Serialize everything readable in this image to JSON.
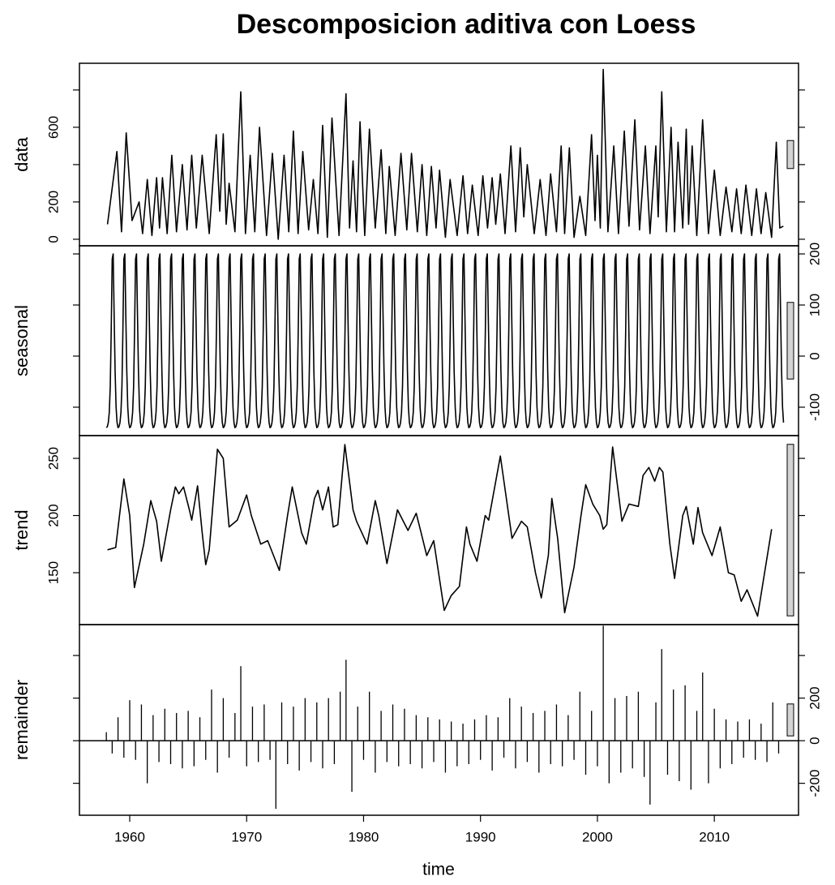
{
  "chart_data": {
    "type": "stl",
    "title": "Descomposicion aditiva con Loess",
    "xlabel": "time",
    "xlim": [
      1955.7,
      2017.2
    ],
    "xticks": [
      1960,
      1970,
      1980,
      1990,
      2000,
      2010
    ],
    "panels": [
      {
        "ylabel": "data",
        "type": "line",
        "axis_side": "left",
        "color": "#000000",
        "ylim": [
          -35,
          943
        ],
        "yticks": [
          0,
          200,
          600
        ],
        "yticks_unlabeled": [
          400,
          800
        ],
        "x": [
          1958.1,
          1958.9,
          1959.3,
          1959.7,
          1960.2,
          1960.8,
          1961.1,
          1961.5,
          1961.9,
          1962.3,
          1962.55,
          1962.8,
          1963.2,
          1963.6,
          1964.0,
          1964.5,
          1964.9,
          1965.3,
          1965.7,
          1966.2,
          1966.8,
          1967.4,
          1967.7,
          1968.0,
          1968.25,
          1968.5,
          1969.0,
          1969.5,
          1969.9,
          1970.3,
          1970.7,
          1971.1,
          1971.7,
          1972.2,
          1972.7,
          1973.2,
          1973.6,
          1974.0,
          1974.4,
          1974.8,
          1975.3,
          1975.7,
          1976.1,
          1976.5,
          1976.9,
          1977.3,
          1977.9,
          1978.5,
          1978.8,
          1979.1,
          1979.4,
          1979.7,
          1980.1,
          1980.5,
          1981.0,
          1981.5,
          1981.9,
          1982.2,
          1982.7,
          1983.2,
          1983.7,
          1984.1,
          1984.6,
          1985.0,
          1985.4,
          1985.8,
          1986.2,
          1986.5,
          1987.0,
          1987.4,
          1988.0,
          1988.5,
          1988.9,
          1989.3,
          1989.8,
          1990.2,
          1990.6,
          1991.0,
          1991.3,
          1991.7,
          1992.1,
          1992.6,
          1993.0,
          1993.4,
          1993.7,
          1994.0,
          1994.6,
          1995.1,
          1995.6,
          1996.0,
          1996.5,
          1996.9,
          1997.2,
          1997.6,
          1998.0,
          1998.5,
          1999.0,
          1999.5,
          1999.8,
          2000.0,
          2000.25,
          2000.5,
          2000.9,
          2001.4,
          2001.8,
          2002.3,
          2002.7,
          2003.2,
          2003.6,
          2004.1,
          2004.5,
          2005.0,
          2005.2,
          2005.5,
          2005.9,
          2006.3,
          2006.6,
          2006.9,
          2007.3,
          2007.6,
          2007.8,
          2008.1,
          2008.5,
          2009.0,
          2009.5,
          2010.0,
          2010.5,
          2011.0,
          2011.5,
          2011.9,
          2012.3,
          2012.7,
          2013.2,
          2013.6,
          2014.0,
          2014.4,
          2014.9,
          2015.3,
          2015.6,
          2015.9
        ],
        "values": [
          80,
          470,
          40,
          570,
          100,
          200,
          30,
          320,
          20,
          330,
          60,
          330,
          30,
          450,
          40,
          400,
          50,
          450,
          60,
          450,
          30,
          560,
          150,
          565,
          80,
          300,
          40,
          790,
          30,
          450,
          40,
          600,
          20,
          460,
          0,
          450,
          40,
          580,
          30,
          470,
          50,
          320,
          30,
          610,
          10,
          650,
          20,
          780,
          60,
          420,
          40,
          630,
          20,
          590,
          60,
          480,
          30,
          390,
          20,
          460,
          50,
          460,
          40,
          400,
          20,
          390,
          60,
          370,
          10,
          320,
          20,
          340,
          30,
          290,
          20,
          340,
          60,
          330,
          80,
          350,
          30,
          500,
          40,
          490,
          120,
          400,
          30,
          320,
          20,
          350,
          40,
          500,
          30,
          490,
          10,
          230,
          20,
          560,
          100,
          450,
          60,
          910,
          40,
          500,
          30,
          580,
          70,
          640,
          50,
          500,
          30,
          500,
          120,
          790,
          40,
          600,
          40,
          520,
          60,
          590,
          80,
          500,
          20,
          640,
          30,
          370,
          20,
          280,
          40,
          270,
          30,
          290,
          20,
          270,
          30,
          250,
          10,
          520,
          60,
          70
        ]
      },
      {
        "ylabel": "seasonal",
        "type": "cycle",
        "axis_side": "right",
        "color": "#000000",
        "ylim": [
          -155.6,
          215.9
        ],
        "yticks": [
          -100,
          0,
          100,
          200
        ],
        "start": 1958,
        "end": 2016,
        "frequency": 12,
        "values": [
          -140,
          -138,
          -130,
          -110,
          -60,
          50,
          190,
          200,
          80,
          -30,
          -100,
          -130
        ]
      },
      {
        "ylabel": "trend",
        "type": "line",
        "axis_side": "left",
        "color": "#000000",
        "scale_bar": true,
        "ylim": [
          104.6,
          269.9
        ],
        "yticks": [
          150,
          200,
          250
        ],
        "x": [
          1958.1,
          1958.8,
          1959.5,
          1960,
          1960.4,
          1961.2,
          1961.8,
          1962.3,
          1962.7,
          1963.5,
          1963.9,
          1964.2,
          1964.6,
          1965.1,
          1965.3,
          1965.8,
          1966.2,
          1966.5,
          1966.8,
          1967.5,
          1968,
          1968.5,
          1969.2,
          1970,
          1970.4,
          1971.2,
          1971.8,
          1972.8,
          1973.5,
          1973.9,
          1974.7,
          1975.1,
          1975.8,
          1976.1,
          1976.5,
          1977,
          1977.4,
          1977.8,
          1978.4,
          1979.1,
          1979.4,
          1980.3,
          1981,
          1981.3,
          1982,
          1982.9,
          1983.4,
          1983.8,
          1984.5,
          1984.9,
          1985.4,
          1986,
          1986.9,
          1987.5,
          1988.2,
          1988.8,
          1989.1,
          1989.7,
          1990.4,
          1990.7,
          1991.7,
          1992.7,
          1993.5,
          1994,
          1994.7,
          1995.2,
          1995.8,
          1996.1,
          1996.6,
          1997.2,
          1998,
          1998.6,
          1999,
          1999.6,
          2000.2,
          2000.5,
          2000.8,
          2001.3,
          2002.1,
          2002.7,
          2003.5,
          2003.9,
          2004.4,
          2004.9,
          2005.3,
          2005.6,
          2006.2,
          2006.6,
          2007.3,
          2007.6,
          2008.2,
          2008.6,
          2009,
          2009.8,
          2010.5,
          2011.2,
          2011.7,
          2012.3,
          2012.8,
          2013.7,
          2014.9
        ],
        "values": [
          170,
          172,
          232,
          200,
          137,
          175,
          213,
          195,
          160,
          205,
          225,
          219,
          225,
          205,
          196,
          226,
          185,
          157,
          170,
          258,
          250,
          190,
          196,
          218,
          200,
          175,
          178,
          152,
          200,
          225,
          185,
          175,
          215,
          222,
          205,
          225,
          190,
          192,
          262,
          205,
          195,
          175,
          213,
          200,
          158,
          205,
          195,
          187,
          202,
          186,
          165,
          178,
          117,
          130,
          138,
          190,
          175,
          160,
          200,
          196,
          252,
          180,
          195,
          190,
          150,
          128,
          165,
          215,
          180,
          115,
          155,
          200,
          227,
          210,
          200,
          188,
          192,
          260,
          195,
          210,
          208,
          235,
          242,
          230,
          242,
          238,
          175,
          145,
          200,
          208,
          175,
          207,
          185,
          165,
          190,
          150,
          148,
          125,
          135,
          112,
          188
        ]
      },
      {
        "ylabel": "remainder",
        "type": "bar",
        "axis_side": "right",
        "color": "#000000",
        "ylim": [
          -350,
          545
        ],
        "yticks": [
          -200,
          0,
          200
        ],
        "yticks_unlabeled": [
          400
        ],
        "start": 1958,
        "frequency": 2,
        "values": [
          40,
          -60,
          110,
          -80,
          190,
          -90,
          170,
          -200,
          120,
          -100,
          150,
          -110,
          130,
          -130,
          140,
          -120,
          110,
          -90,
          240,
          -150,
          200,
          -80,
          130,
          350,
          -120,
          160,
          -100,
          170,
          -90,
          -320,
          180,
          -110,
          160,
          -140,
          200,
          -100,
          180,
          -130,
          200,
          -110,
          230,
          380,
          -240,
          160,
          -90,
          230,
          -150,
          140,
          -100,
          170,
          -120,
          150,
          -110,
          120,
          -130,
          110,
          -100,
          100,
          -150,
          90,
          -120,
          80,
          -110,
          100,
          -90,
          120,
          -140,
          110,
          -80,
          200,
          -130,
          160,
          -100,
          130,
          -150,
          140,
          -110,
          170,
          -120,
          120,
          -90,
          230,
          -160,
          140,
          -120,
          540,
          -200,
          200,
          -150,
          210,
          -130,
          230,
          -170,
          -300,
          180,
          430,
          -160,
          240,
          -190,
          260,
          -230,
          140,
          320,
          -200,
          150,
          -130,
          100,
          -110,
          90,
          -80,
          100,
          -90,
          80,
          -100,
          180,
          -60
        ]
      }
    ]
  }
}
